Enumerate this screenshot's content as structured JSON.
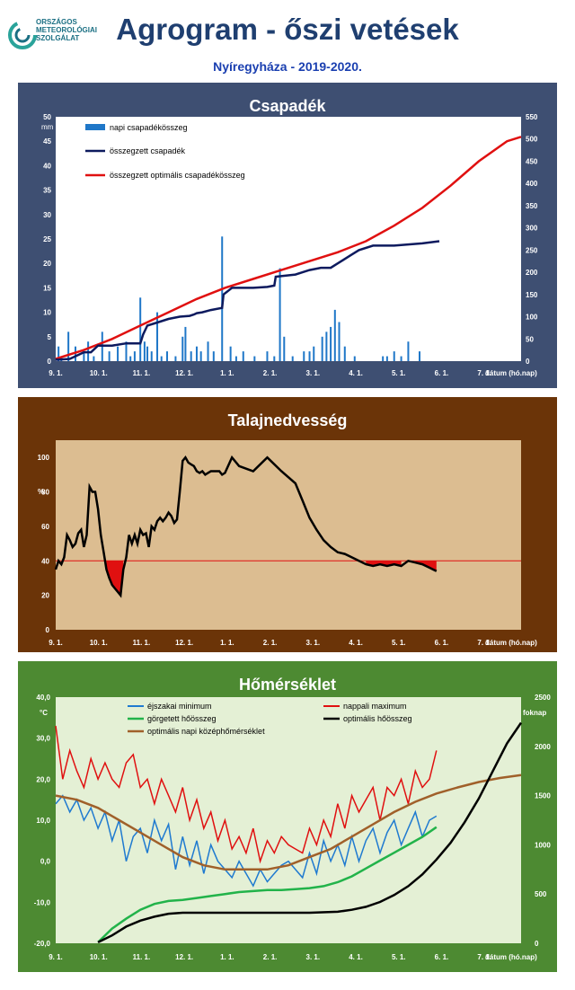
{
  "header": {
    "title": "Agrogram - őszi vetések",
    "subtitle": "Nyíregyháza  - 2019-2020.",
    "logo_lines": [
      "ORSZÁGOS",
      "METEOROLÓGIAI",
      "SZOLGÁLAT"
    ]
  },
  "colors": {
    "panel1_frame": "#3e4f72",
    "panel1_plot": "#ffffff",
    "panel2_frame": "#6b3408",
    "panel2_plot": "#dcbd91",
    "panel3_frame": "#4d8a32",
    "panel3_plot": "#e4f0d5"
  },
  "chart_data": [
    {
      "type": "bar+line",
      "title": "Csapadék",
      "ylabel_left": "mm",
      "ylim_left": [
        0,
        50
      ],
      "yticks_left": [
        "0",
        "5",
        "10",
        "15",
        "20",
        "25",
        "30",
        "35",
        "40",
        "45",
        "50"
      ],
      "ylim_right": [
        0,
        550
      ],
      "yticks_right": [
        "0",
        "50",
        "100",
        "150",
        "200",
        "250",
        "300",
        "350",
        "400",
        "450",
        "500",
        "550"
      ],
      "x_ticks": [
        "9. 1.",
        "10. 1.",
        "11. 1.",
        "12. 1.",
        "1. 1.",
        "2. 1.",
        "3. 1.",
        "4. 1.",
        "5. 1.",
        "6. 1.",
        "7. 1."
      ],
      "x_unit_label": "dátum (hó.nap)",
      "legend": [
        "napi csapadékösszeg",
        "összegzett csapadék",
        "összegzett optimális csapadékösszeg"
      ],
      "series": [
        {
          "name": "napi csapadékösszeg",
          "type": "bar",
          "color": "#1f77c8",
          "x": [
            2,
            4,
            9,
            14,
            20,
            23,
            27,
            33,
            38,
            44,
            50,
            53,
            56,
            60,
            63,
            65,
            68,
            72,
            75,
            79,
            85,
            90,
            92,
            96,
            100,
            103,
            108,
            112,
            118,
            124,
            128,
            133,
            141,
            150,
            155,
            159,
            162,
            168,
            176,
            180,
            183,
            189,
            192,
            195,
            198,
            201,
            205,
            212,
            232,
            235,
            240,
            245,
            250,
            258
          ],
          "values": [
            3,
            1,
            6,
            3,
            2,
            4,
            1,
            6,
            2,
            3,
            4,
            1,
            2,
            13,
            4,
            3,
            2,
            10,
            1,
            2,
            1,
            5,
            7,
            2,
            3,
            2,
            4,
            2,
            25.5,
            3,
            1,
            2,
            1,
            2,
            1,
            19,
            5,
            1,
            2,
            2,
            3,
            5,
            6,
            7,
            10.5,
            8,
            3,
            1,
            1,
            1,
            2,
            1,
            4,
            2
          ]
        },
        {
          "name": "összegzett csapadék",
          "type": "line",
          "color": "#0d1a5e",
          "x": [
            0,
            10,
            20,
            25,
            30,
            40,
            50,
            60,
            62,
            65,
            70,
            80,
            88,
            95,
            98,
            100,
            104,
            110,
            118,
            119,
            125,
            140,
            150,
            155,
            156,
            170,
            175,
            180,
            188,
            195,
            200,
            210,
            215,
            225,
            240,
            260,
            272
          ],
          "values": [
            3,
            5,
            20,
            20,
            35,
            35,
            40,
            40,
            60,
            80,
            85,
            95,
            100,
            102,
            105,
            108,
            110,
            115,
            120,
            150,
            165,
            165,
            167,
            170,
            190,
            195,
            200,
            205,
            210,
            210,
            220,
            240,
            250,
            260,
            260,
            265,
            270
          ]
        },
        {
          "name": "összegzett optimális csapadékösszeg",
          "type": "line",
          "color": "#e01010",
          "x": [
            0,
            20,
            40,
            60,
            80,
            100,
            120,
            140,
            160,
            180,
            200,
            220,
            240,
            260,
            280,
            300,
            320,
            330
          ],
          "values": [
            5,
            25,
            50,
            80,
            110,
            140,
            165,
            185,
            205,
            225,
            245,
            270,
            305,
            345,
            395,
            450,
            495,
            505
          ]
        }
      ]
    },
    {
      "type": "line",
      "title": "Talajnedvesség",
      "ylabel": "%",
      "ylim": [
        0,
        110
      ],
      "yticks": [
        "0",
        "20",
        "40",
        "60",
        "80",
        "100"
      ],
      "x_ticks": [
        "9. 1.",
        "10. 1.",
        "11. 1.",
        "12. 1.",
        "1. 1.",
        "2. 1.",
        "3. 1.",
        "4. 1.",
        "5. 1.",
        "6. 1.",
        "7. 1."
      ],
      "x_unit_label": "dátum (hó.nap)",
      "threshold": 40,
      "series": [
        {
          "name": "",
          "color": "#000000",
          "x": [
            0,
            2,
            4,
            6,
            8,
            10,
            12,
            14,
            16,
            18,
            20,
            22,
            24,
            26,
            28,
            30,
            32,
            34,
            36,
            38,
            40,
            42,
            44,
            46,
            48,
            50,
            52,
            54,
            56,
            58,
            60,
            62,
            64,
            66,
            68,
            70,
            72,
            74,
            76,
            78,
            80,
            82,
            84,
            86,
            88,
            90,
            92,
            94,
            96,
            98,
            100,
            102,
            104,
            106,
            108,
            110,
            112,
            114,
            116,
            118,
            120,
            125,
            130,
            140,
            150,
            160,
            170,
            175,
            180,
            185,
            190,
            195,
            200,
            205,
            210,
            215,
            220,
            225,
            230,
            235,
            240,
            245,
            250,
            255,
            260,
            265,
            270
          ],
          "values": [
            35,
            40,
            38,
            42,
            55,
            52,
            48,
            50,
            56,
            58,
            48,
            55,
            83,
            80,
            80,
            70,
            55,
            45,
            35,
            30,
            26,
            24,
            22,
            20,
            35,
            42,
            55,
            50,
            55,
            50,
            58,
            55,
            56,
            48,
            60,
            58,
            63,
            65,
            63,
            65,
            68,
            66,
            62,
            64,
            80,
            98,
            100,
            97,
            96,
            95,
            92,
            91,
            92,
            90,
            91,
            92,
            92,
            92,
            92,
            90,
            91,
            100,
            95,
            92,
            100,
            92,
            85,
            75,
            65,
            58,
            52,
            48,
            45,
            44,
            42,
            40,
            38,
            37,
            38,
            37,
            38,
            37,
            40,
            39,
            38,
            36,
            34
          ]
        }
      ]
    },
    {
      "type": "line",
      "title": "Hőmérséklet",
      "ylabel_left": "°C",
      "ylim_left": [
        -20,
        40
      ],
      "yticks_left": [
        "-20,0",
        "-10,0",
        "0,0",
        "10,0",
        "20,0",
        "30,0",
        "40,0"
      ],
      "ylabel_right": "foknap",
      "ylim_right": [
        0,
        2500
      ],
      "yticks_right": [
        "0",
        "500",
        "1000",
        "1500",
        "2000",
        "2500"
      ],
      "x_ticks": [
        "9. 1.",
        "10. 1.",
        "11. 1.",
        "12. 1.",
        "1. 1.",
        "2. 1.",
        "3. 1.",
        "4. 1.",
        "5. 1.",
        "6. 1.",
        "7. 1."
      ],
      "x_unit_label": "dátum (hó.nap)",
      "legend": [
        "éjszakai minimum",
        "nappali maximum",
        "görgetett hőösszeg",
        "optimális hőösszeg",
        "optimális napi középhőmérséklet"
      ],
      "series": [
        {
          "name": "éjszakai minimum",
          "color": "#1f7ad0",
          "axis": "left",
          "x": [
            0,
            5,
            10,
            15,
            20,
            25,
            30,
            35,
            40,
            45,
            50,
            55,
            60,
            65,
            70,
            75,
            80,
            85,
            90,
            95,
            100,
            105,
            110,
            115,
            120,
            125,
            130,
            135,
            140,
            145,
            150,
            155,
            160,
            165,
            170,
            175,
            180,
            185,
            190,
            195,
            200,
            205,
            210,
            215,
            220,
            225,
            230,
            235,
            240,
            245,
            250,
            255,
            260,
            265,
            270
          ],
          "values": [
            14,
            16,
            12,
            15,
            10,
            13,
            8,
            12,
            5,
            10,
            0,
            6,
            8,
            2,
            10,
            5,
            9,
            -2,
            6,
            -1,
            5,
            -3,
            4,
            0,
            -2,
            -4,
            0,
            -3,
            -6,
            -2,
            -5,
            -3,
            -1,
            0,
            -2,
            -4,
            2,
            -3,
            5,
            0,
            4,
            -1,
            6,
            0,
            5,
            8,
            2,
            7,
            10,
            4,
            8,
            12,
            6,
            10,
            11
          ]
        },
        {
          "name": "nappali maximum",
          "color": "#e01010",
          "axis": "left",
          "x": [
            0,
            5,
            10,
            15,
            20,
            25,
            30,
            35,
            40,
            45,
            50,
            55,
            60,
            65,
            70,
            75,
            80,
            85,
            90,
            95,
            100,
            105,
            110,
            115,
            120,
            125,
            130,
            135,
            140,
            145,
            150,
            155,
            160,
            165,
            170,
            175,
            180,
            185,
            190,
            195,
            200,
            205,
            210,
            215,
            220,
            225,
            230,
            235,
            240,
            245,
            250,
            255,
            260,
            265,
            270
          ],
          "values": [
            33,
            20,
            27,
            22,
            18,
            25,
            20,
            24,
            20,
            18,
            24,
            26,
            18,
            20,
            14,
            20,
            16,
            12,
            18,
            10,
            15,
            8,
            12,
            5,
            10,
            3,
            6,
            2,
            8,
            0,
            5,
            2,
            6,
            4,
            3,
            2,
            8,
            4,
            10,
            6,
            14,
            8,
            16,
            12,
            15,
            18,
            10,
            18,
            16,
            20,
            14,
            22,
            18,
            20,
            27
          ]
        },
        {
          "name": "görgetett hőösszeg",
          "color": "#22b34a",
          "axis": "right",
          "x": [
            30,
            40,
            50,
            60,
            70,
            80,
            90,
            100,
            110,
            120,
            130,
            140,
            150,
            160,
            170,
            180,
            190,
            200,
            210,
            220,
            230,
            240,
            250,
            260,
            270
          ],
          "values": [
            10,
            150,
            250,
            340,
            400,
            430,
            440,
            460,
            480,
            500,
            520,
            530,
            540,
            540,
            550,
            560,
            580,
            620,
            680,
            760,
            840,
            920,
            1000,
            1080,
            1180
          ]
        },
        {
          "name": "optimális hőösszeg",
          "color": "#000000",
          "axis": "right",
          "x": [
            30,
            40,
            50,
            60,
            70,
            80,
            90,
            100,
            120,
            140,
            160,
            180,
            200,
            210,
            220,
            230,
            240,
            250,
            260,
            270,
            280,
            290,
            300,
            310,
            320,
            330
          ],
          "values": [
            10,
            80,
            170,
            230,
            270,
            300,
            310,
            310,
            310,
            310,
            310,
            310,
            320,
            340,
            370,
            420,
            490,
            580,
            700,
            850,
            1020,
            1230,
            1470,
            1750,
            2030,
            2240
          ]
        },
        {
          "name": "optimális napi középhőmérséklet",
          "color": "#a0602a",
          "axis": "left",
          "x": [
            0,
            15,
            30,
            45,
            60,
            75,
            90,
            105,
            120,
            135,
            150,
            165,
            180,
            195,
            210,
            225,
            240,
            255,
            270,
            285,
            300,
            315,
            330
          ],
          "values": [
            16,
            15,
            13,
            10,
            7,
            4,
            1,
            -1,
            -2,
            -2,
            -2,
            -1,
            1,
            3,
            6,
            9,
            12,
            14.5,
            16.5,
            18,
            19.3,
            20.3,
            21
          ]
        }
      ]
    }
  ]
}
